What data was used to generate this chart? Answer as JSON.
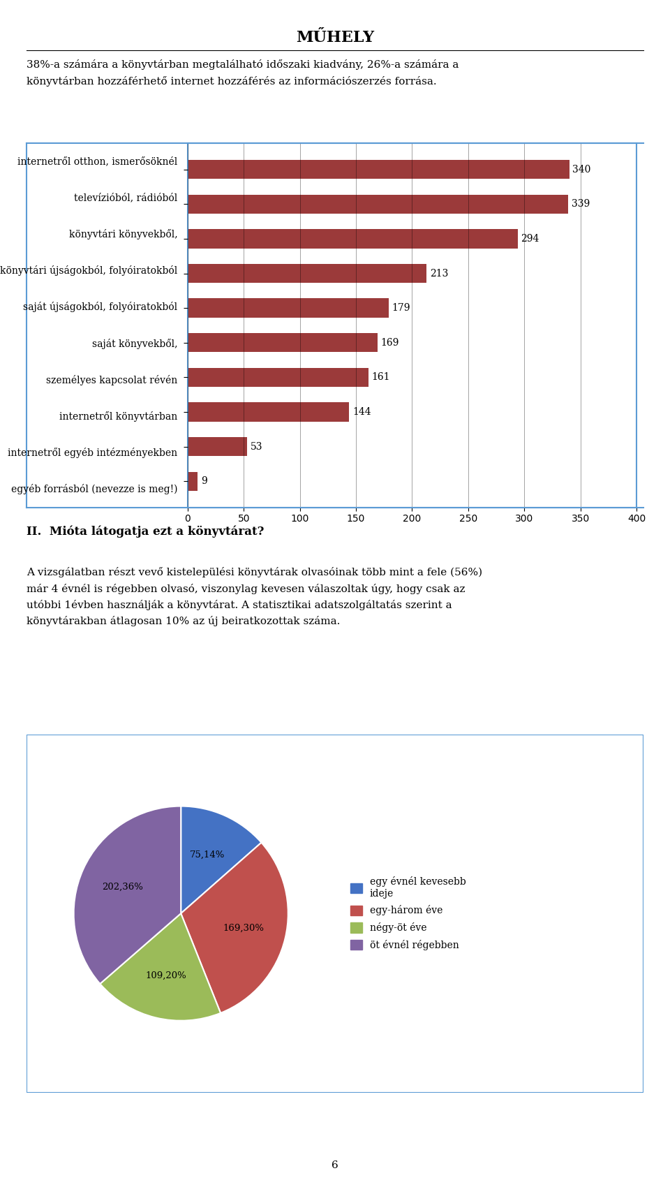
{
  "title": "MŰHELY",
  "intro_text": "38%-a számára a könyvtárban megtalálható időszaki kiadvány, 26%-a számára a\nkönyvtárban hozzáférhető internet hozzáférés az információszerzés forrása.",
  "bar_categories": [
    "internetről otthon, ismerősöknél",
    "televízióból, rádióból",
    "könyvtári könyvekből,",
    "könyvtári újságokból, folyóiratokból",
    "saját újságokból, folyóiratokból",
    "saját könyvekből,",
    "személyes kapcsolat révén",
    "internetről könyvtárban",
    "internetről egyéb intézményekben",
    "egyéb forrásból (nevezze is meg!)"
  ],
  "bar_values": [
    340,
    339,
    294,
    213,
    179,
    169,
    161,
    144,
    53,
    9
  ],
  "bar_color": "#9B3A3A",
  "bar_xlim": [
    0,
    400
  ],
  "bar_xticks": [
    0,
    50,
    100,
    150,
    200,
    250,
    300,
    350,
    400
  ],
  "section2_title": "II.  Mióta látogatja ezt a könyvtárat?",
  "section2_text": "A vizsgálatban részt vevő kistelepülési könyvtárak olvasóinak több mint a fele (56%)\nmár 4 évnél is régebben olvasó, viszonylag kevesen válaszoltak úgy, hogy csak az\nutóbbi 1évben használják a könyvtárat. A statisztikai adatszolgáltatás szerint a\nkönyvtárakban átlagosan 10% az új beiratkozottak száma.",
  "pie_values": [
    75,
    169,
    109,
    202
  ],
  "pie_labels": [
    "75,14%",
    "169,30%",
    "109,20%",
    "202,36%"
  ],
  "pie_colors": [
    "#4472C4",
    "#C0504D",
    "#9BBB59",
    "#8064A2"
  ],
  "pie_legend_labels": [
    "egy évnél kevesebb\nideje",
    "egy-három éve",
    "négy-öt éve",
    "öt évnél régebben"
  ],
  "page_number": "6",
  "box_color": "#5B9BD5",
  "background_color": "#FFFFFF",
  "text_color": "#000000"
}
